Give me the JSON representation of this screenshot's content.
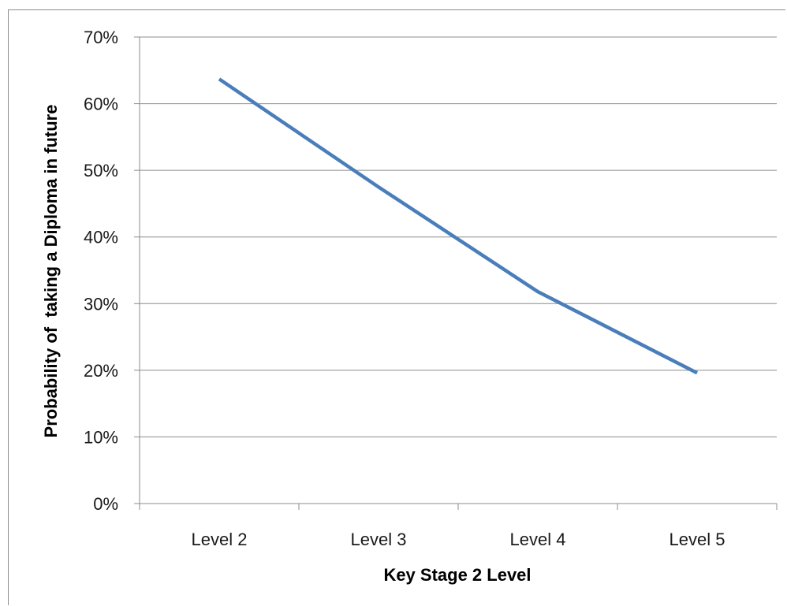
{
  "chart_data": {
    "type": "line",
    "categories": [
      "Level 2",
      "Level 3",
      "Level 4",
      "Level 5"
    ],
    "series": [
      {
        "values": [
          63.7,
          47.5,
          31.8,
          19.6
        ]
      }
    ],
    "title": "",
    "xlabel": "Key Stage 2 Level",
    "ylabel": "Probability of  taking a Diploma in future",
    "ylim": [
      0,
      70
    ],
    "yticks": [
      0,
      10,
      20,
      30,
      40,
      50,
      60,
      70
    ],
    "ytick_labels": [
      "0%",
      "10%",
      "20%",
      "30%",
      "40%",
      "50%",
      "60%",
      "70%"
    ],
    "grid": true,
    "legend": "none",
    "colors": {
      "series": "#4a7ebb",
      "grid": "#8c8c8c",
      "axis": "#8c8c8c"
    }
  }
}
